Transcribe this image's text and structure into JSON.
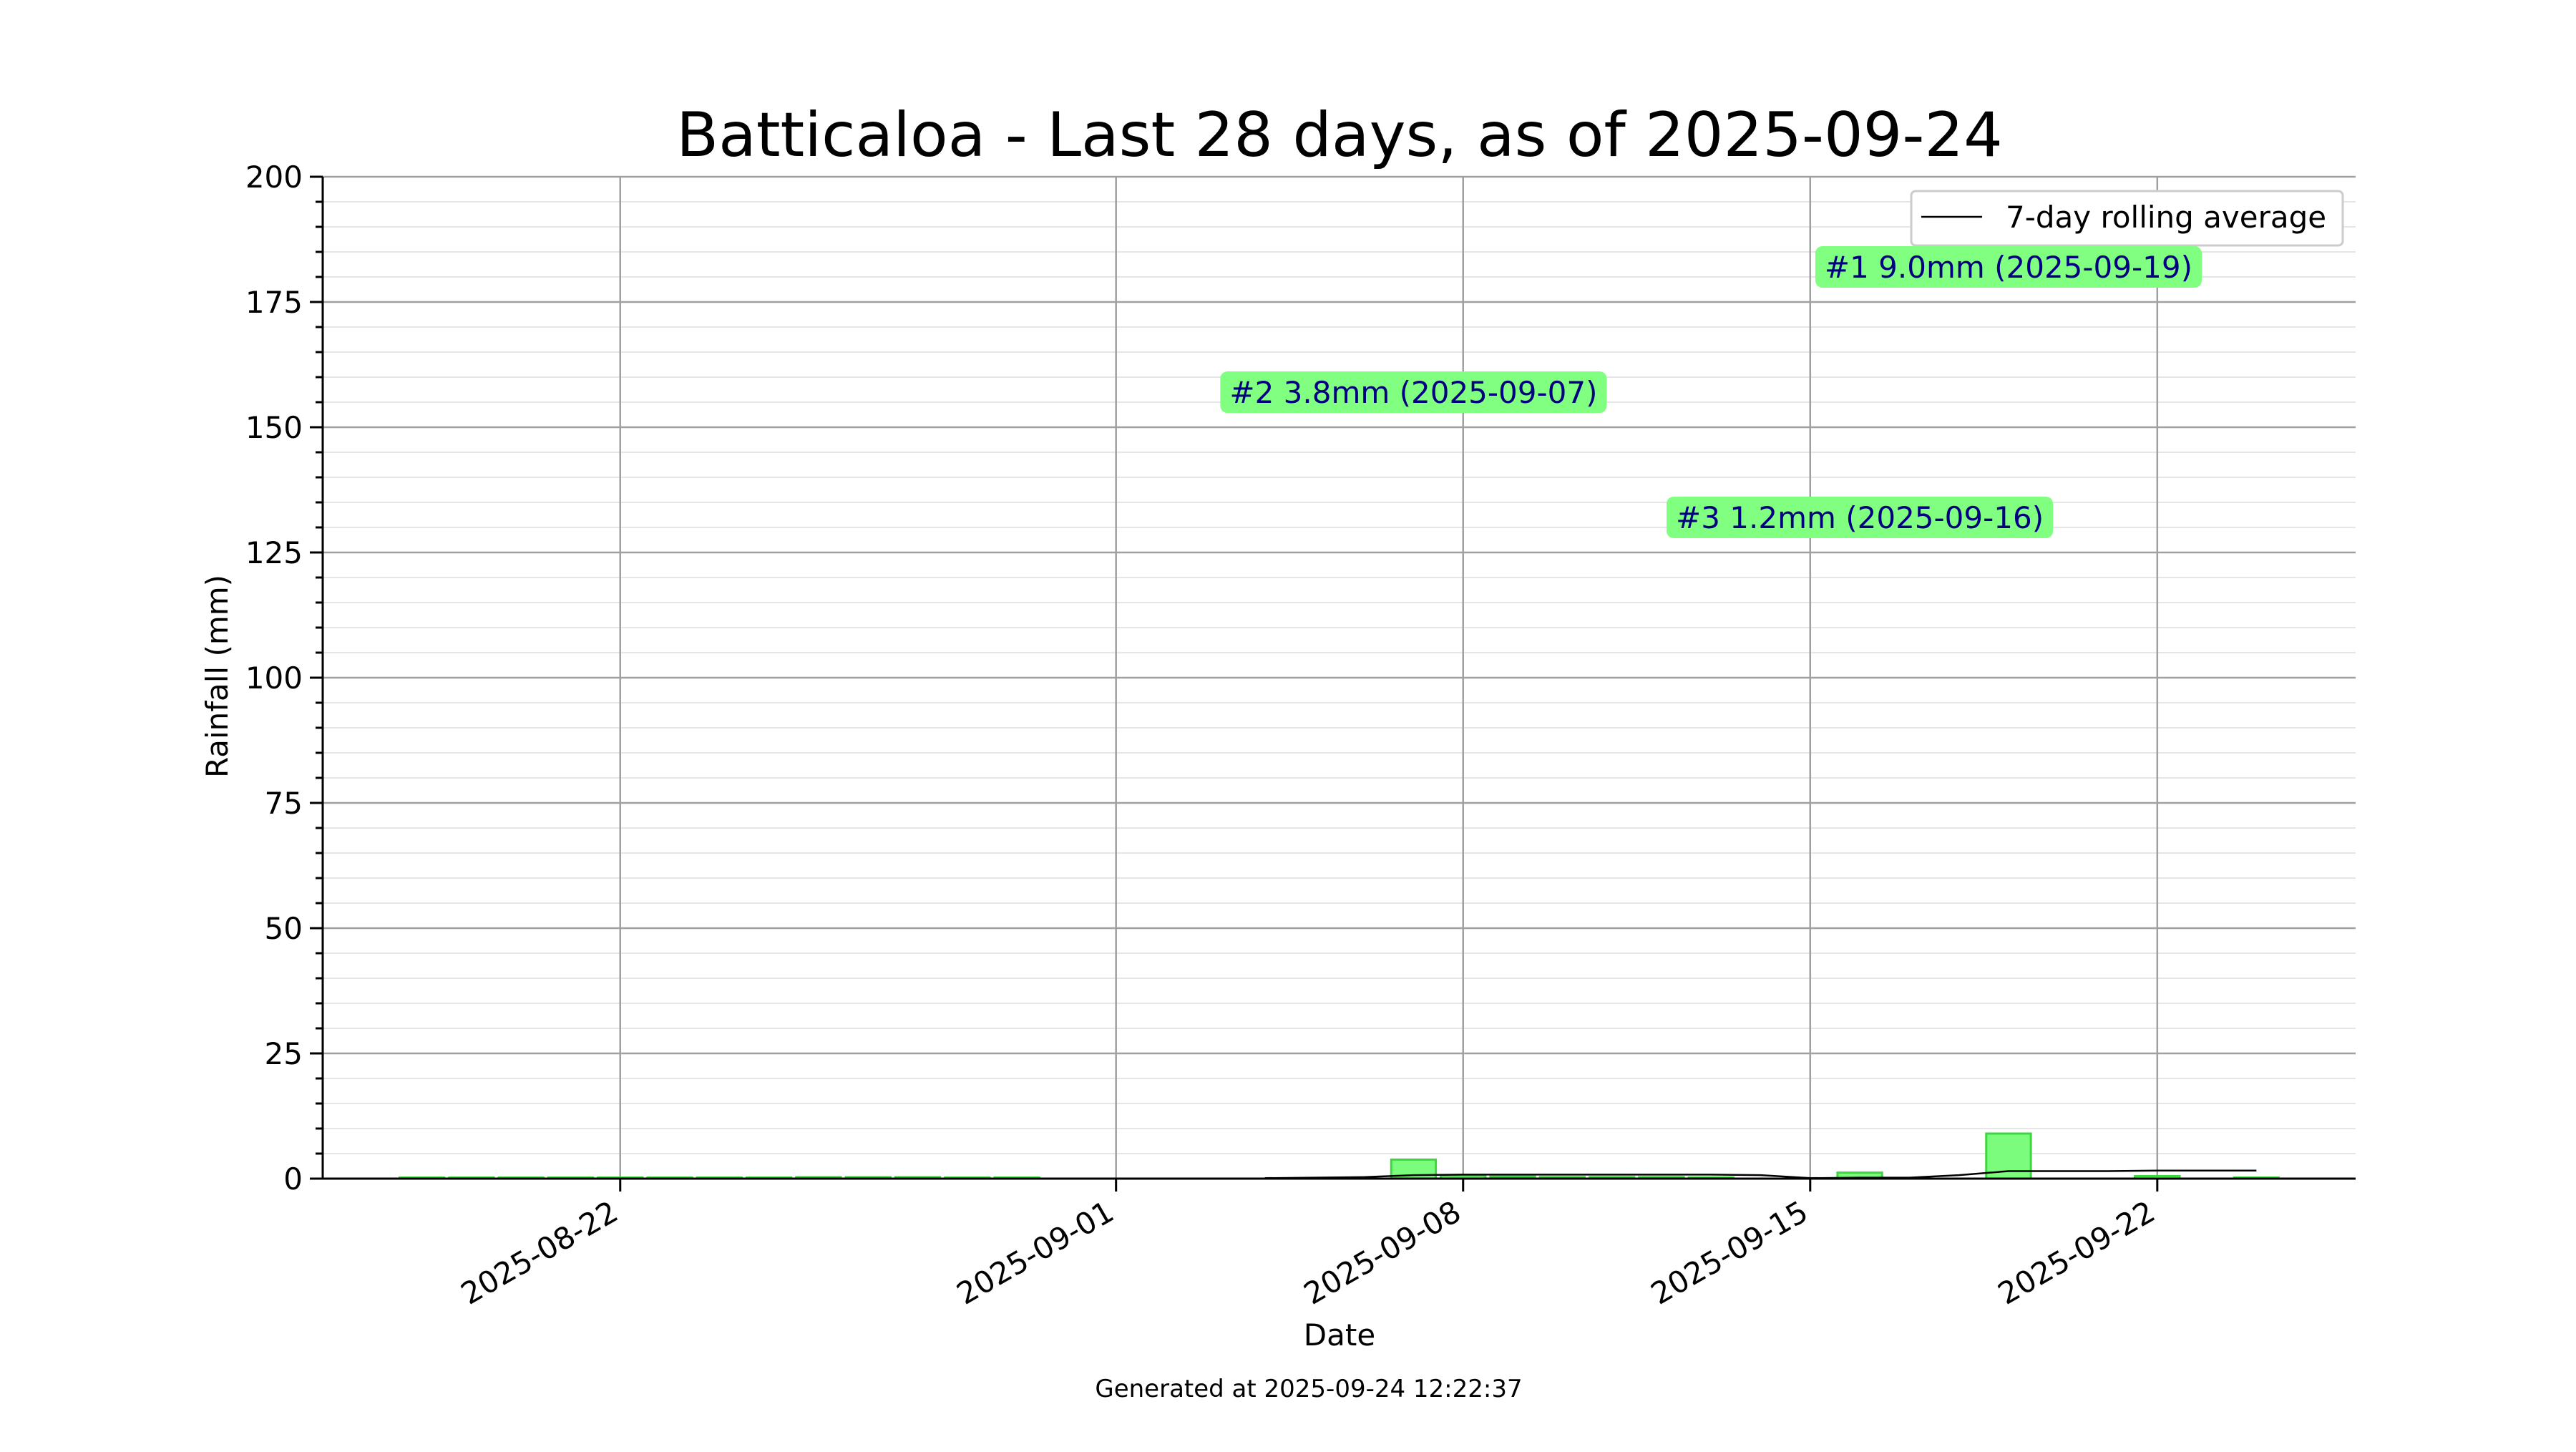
{
  "chart_data": {
    "type": "bar",
    "title": "Batticaloa - Last 28 days, as of 2025-09-24",
    "xlabel": "Date",
    "ylabel": "Rainfall (mm)",
    "ylim": [
      0,
      200
    ],
    "yticks": [
      0,
      25,
      50,
      75,
      100,
      125,
      150,
      175,
      200
    ],
    "xlim": [
      "2025-08-16",
      "2025-09-26"
    ],
    "xticks": [
      "2025-08-22",
      "2025-09-01",
      "2025-09-08",
      "2025-09-15",
      "2025-09-22"
    ],
    "grid": true,
    "legend_position": "top-right",
    "colors": {
      "bar_fill": "#7cfc7c",
      "bar_edge": "#3ed63e",
      "line": "#000000",
      "grid_major": "#a0a0a0",
      "grid_minor": "#e6e6e6",
      "annotation_bg": "#80ff80",
      "annotation_text": "#000080"
    },
    "series": [
      {
        "kind": "bar",
        "dates": [
          "2025-08-18",
          "2025-08-19",
          "2025-08-20",
          "2025-08-21",
          "2025-08-22",
          "2025-08-23",
          "2025-08-24",
          "2025-08-25",
          "2025-08-26",
          "2025-08-27",
          "2025-08-28",
          "2025-08-29",
          "2025-08-30",
          "2025-09-07",
          "2025-09-08",
          "2025-09-09",
          "2025-09-10",
          "2025-09-11",
          "2025-09-12",
          "2025-09-13",
          "2025-09-16",
          "2025-09-19",
          "2025-09-22",
          "2025-09-24"
        ],
        "values": [
          0.1,
          0.1,
          0.1,
          0.1,
          0.2,
          0.2,
          0.2,
          0.2,
          0.3,
          0.3,
          0.3,
          0.2,
          0.1,
          3.8,
          0.6,
          0.4,
          0.3,
          0.3,
          0.3,
          0.2,
          1.2,
          9.0,
          0.5,
          0.1
        ]
      },
      {
        "kind": "line",
        "name": "7-day rolling average",
        "dates": [
          "2025-09-04",
          "2025-09-05",
          "2025-09-06",
          "2025-09-07",
          "2025-09-08",
          "2025-09-09",
          "2025-09-10",
          "2025-09-11",
          "2025-09-12",
          "2025-09-13",
          "2025-09-14",
          "2025-09-15",
          "2025-09-16",
          "2025-09-17",
          "2025-09-18",
          "2025-09-19",
          "2025-09-20",
          "2025-09-21",
          "2025-09-22",
          "2025-09-23",
          "2025-09-24"
        ],
        "values": [
          0.1,
          0.2,
          0.3,
          0.7,
          0.8,
          0.8,
          0.8,
          0.8,
          0.8,
          0.8,
          0.7,
          0.1,
          0.2,
          0.2,
          0.7,
          1.5,
          1.5,
          1.5,
          1.6,
          1.6,
          1.6
        ]
      }
    ],
    "annotations": [
      {
        "text": "#1 9.0mm (2025-09-19)",
        "anchor_date": "2025-09-19",
        "y": 182
      },
      {
        "text": "#2 3.8mm (2025-09-07)",
        "anchor_date": "2025-09-07",
        "y": 157
      },
      {
        "text": "#3 1.2mm (2025-09-16)",
        "anchor_date": "2025-09-16",
        "y": 132
      }
    ],
    "footer": "Generated at 2025-09-24 12:22:37"
  }
}
